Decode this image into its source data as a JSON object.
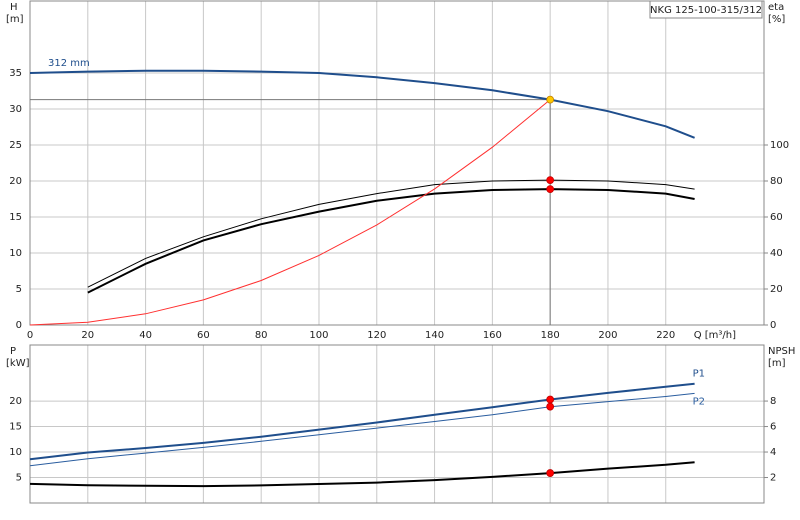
{
  "chart_data": [
    {
      "type": "line",
      "title": "NKG 125-100-315/312",
      "xlabel": "Q [m³/h]",
      "ylabel": "H",
      "yunit": "[m]",
      "y2label": "eta",
      "y2unit": "[%]",
      "x": [
        0,
        20,
        40,
        60,
        80,
        100,
        120,
        140,
        160,
        180,
        200,
        220,
        230
      ],
      "xlim": [
        0,
        254
      ],
      "xticks": [
        0,
        20,
        40,
        60,
        80,
        100,
        120,
        140,
        160,
        180,
        200,
        220
      ],
      "xtick_labels": true,
      "ylim": [
        0,
        45
      ],
      "yticks": [
        0,
        5,
        10,
        15,
        20,
        25,
        30,
        35
      ],
      "y2lim": [
        0,
        180
      ],
      "y2ticks": [
        0,
        20,
        40,
        60,
        80,
        100
      ],
      "grid": true,
      "series": [
        {
          "name": "312 mm",
          "color": "#1f4e8c",
          "width": 2,
          "values": [
            35.0,
            35.2,
            35.3,
            35.3,
            35.2,
            35.0,
            34.4,
            33.6,
            32.6,
            31.3,
            29.7,
            27.6,
            26.0
          ]
        },
        {
          "color": "#000000",
          "width": 1,
          "axis": "y2",
          "values": [
            null,
            21,
            37,
            49,
            59,
            67,
            73,
            78,
            80,
            80.5,
            80,
            78,
            75.5
          ]
        },
        {
          "color": "#000000",
          "width": 2,
          "axis": "y2",
          "values": [
            null,
            18,
            34,
            47,
            56,
            63,
            69,
            73,
            75,
            75.5,
            75,
            73,
            70
          ]
        },
        {
          "color": "#ff3030",
          "width": 1,
          "values": [
            0,
            0.39,
            1.55,
            3.48,
            6.18,
            9.66,
            13.9,
            18.9,
            24.7,
            31.3,
            null,
            null,
            null
          ]
        }
      ],
      "markers": [
        {
          "x": 180,
          "y": 31.3,
          "color": "#ffc800"
        },
        {
          "x": 180,
          "y": 80.5,
          "axis": "y2",
          "color": "#ff0000"
        },
        {
          "x": 180,
          "y": 75.5,
          "axis": "y2",
          "color": "#ff0000"
        }
      ]
    },
    {
      "type": "line",
      "ylabel": "P",
      "yunit": "[kW]",
      "y2label": "NPSH",
      "y2unit": "[m]",
      "x": [
        0,
        20,
        40,
        60,
        80,
        100,
        120,
        140,
        160,
        180,
        200,
        220,
        230
      ],
      "xlim": [
        0,
        254
      ],
      "xticks": [
        20,
        40,
        60,
        80,
        100,
        120,
        140,
        160,
        180,
        200,
        220
      ],
      "xtick_labels": false,
      "ylim": [
        0,
        31
      ],
      "yticks": [
        5,
        10,
        15,
        20
      ],
      "y2lim": [
        0,
        12.4
      ],
      "y2ticks": [
        2,
        4,
        6,
        8
      ],
      "grid": true,
      "series": [
        {
          "name": "P1",
          "color": "#1f4e8c",
          "width": 2,
          "values": [
            8.6,
            9.9,
            10.8,
            11.8,
            13.0,
            14.4,
            15.8,
            17.3,
            18.8,
            20.3,
            21.6,
            22.8,
            23.4
          ]
        },
        {
          "name": "P2",
          "color": "#2a5d9f",
          "width": 1,
          "values": [
            7.3,
            8.7,
            9.8,
            10.9,
            12.1,
            13.4,
            14.7,
            16.0,
            17.3,
            18.9,
            19.9,
            20.9,
            21.5
          ]
        },
        {
          "color": "#000000",
          "width": 2,
          "axis": "y2",
          "values": [
            1.5,
            1.4,
            1.35,
            1.33,
            1.38,
            1.49,
            1.6,
            1.8,
            2.05,
            2.35,
            2.7,
            3.0,
            3.2
          ]
        }
      ],
      "markers": [
        {
          "x": 180,
          "y": 20.3,
          "color": "#ff0000"
        },
        {
          "x": 180,
          "y": 18.9,
          "color": "#ff0000"
        },
        {
          "x": 180,
          "y": 2.35,
          "axis": "y2",
          "color": "#ff0000"
        }
      ]
    }
  ]
}
